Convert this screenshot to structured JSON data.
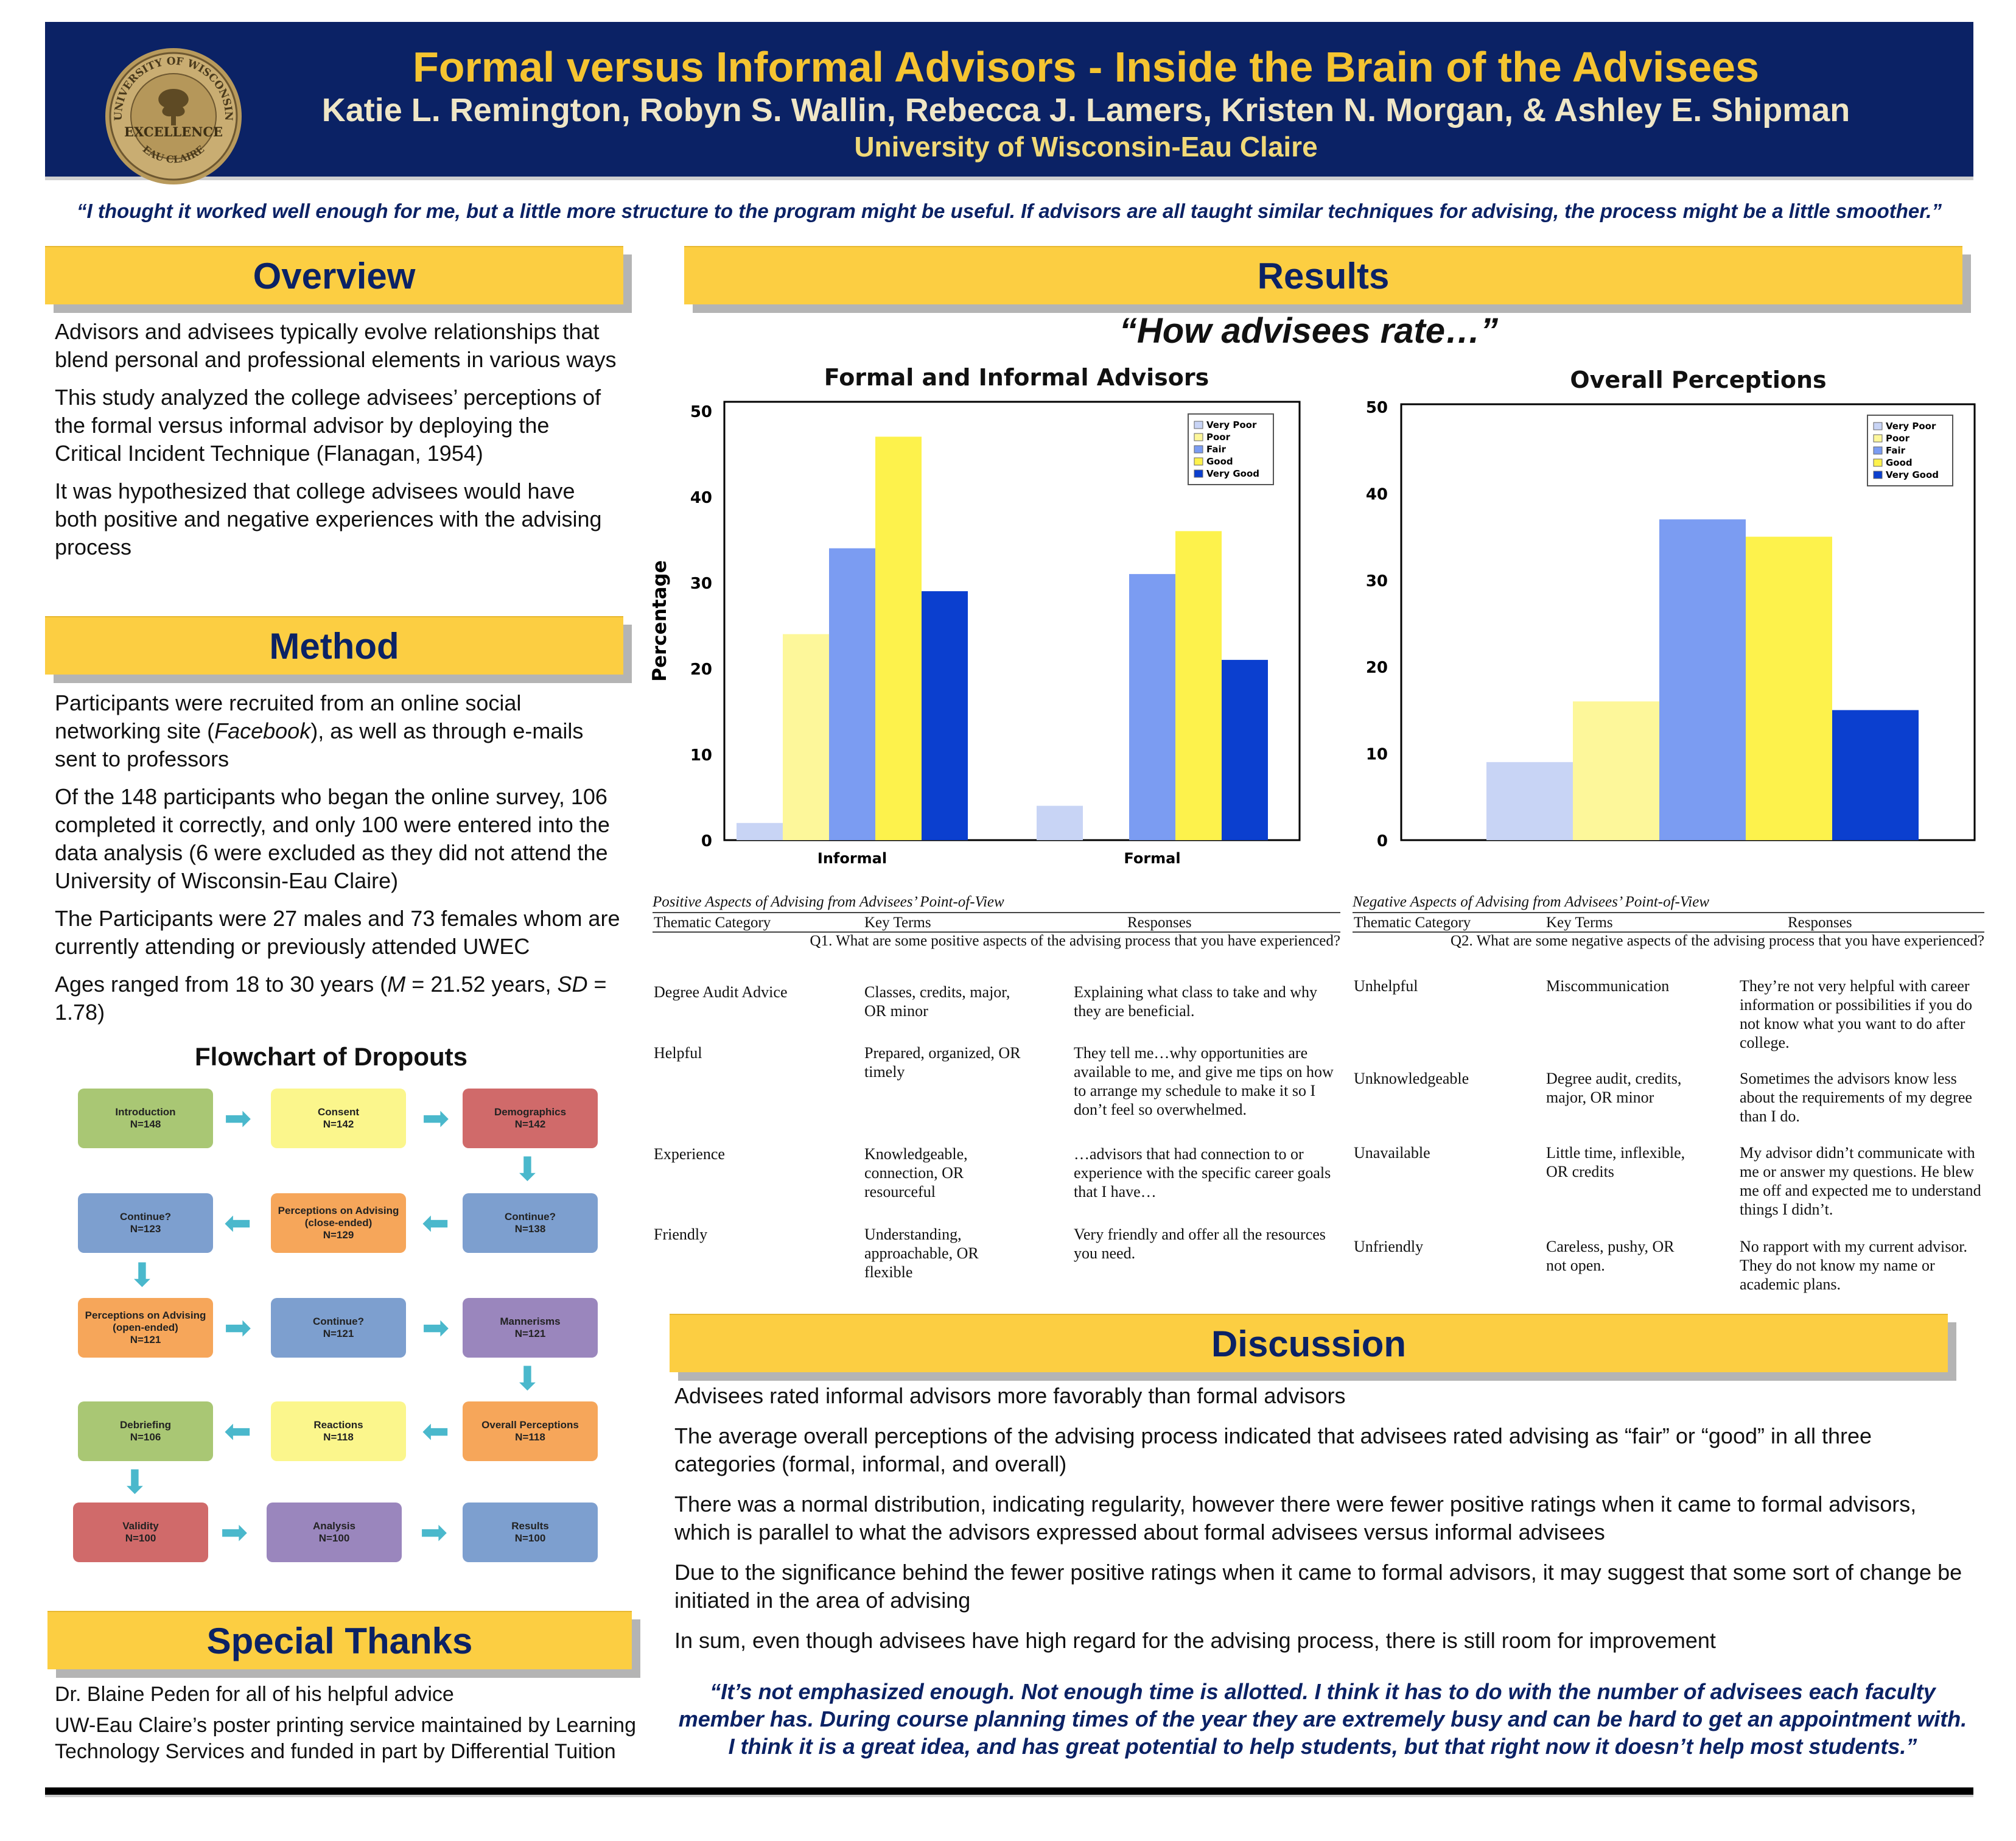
{
  "header": {
    "title": "Formal versus Informal Advisors - Inside the Brain of the Advisees",
    "authors": "Katie L. Remington, Robyn S. Wallin, Rebecca  J. Lamers, Kristen N. Morgan, & Ashley E. Shipman",
    "university": "University of Wisconsin-Eau Claire",
    "seal": {
      "top_text": "UNIVERSITY OF WISCONSIN",
      "center_text": "EXCELLENCE",
      "bottom_text": "EAU CLAIRE"
    }
  },
  "top_quote": "“I thought it worked well enough for me, but a little more structure to the program might be useful.  If advisors are all taught similar techniques for advising, the process might be a little smoother.”",
  "overview": {
    "heading": "Overview",
    "paragraphs": [
      "Advisors and advisees typically evolve relationships that blend personal and professional elements in various ways",
      "This study analyzed the college advisees’ perceptions of the formal versus informal advisor by deploying the Critical Incident Technique (Flanagan, 1954)",
      "It was hypothesized that college advisees would have both positive and negative experiences with the advising process"
    ]
  },
  "method": {
    "heading": "Method",
    "p1_before": "Participants were recruited from an online social networking site (",
    "p1_italic": "Facebook",
    "p1_after": "), as well as through e-mails sent to professors",
    "p2": "Of the 148 participants who began the online survey, 106 completed it correctly, and only 100 were entered into the data analysis (6 were excluded as they did not attend the University of Wisconsin-Eau Claire)",
    "p3": "The Participants were 27 males and 73 females whom are currently attending or previously attended UWEC",
    "p4_a": "Ages ranged from 18 to 30 years (",
    "p4_m": "M",
    "p4_b": " = 21.52 years, ",
    "p4_sd": "SD",
    "p4_c": " = 1.78)"
  },
  "flowchart": {
    "title": "Flowchart of Dropouts",
    "boxes": [
      {
        "label": "Introduction",
        "n": "N=148"
      },
      {
        "label": "Consent",
        "n": "N=142"
      },
      {
        "label": "Demographics",
        "n": "N=142"
      },
      {
        "label": "Continue?",
        "n": "N=138"
      },
      {
        "label": "Perceptions on Advising (close-ended)",
        "n": "N=129"
      },
      {
        "label": "Continue?",
        "n": "N=123"
      },
      {
        "label": "Perceptions on Advising (open-ended)",
        "n": "N=121"
      },
      {
        "label": "Continue?",
        "n": "N=121"
      },
      {
        "label": "Mannerisms",
        "n": "N=121"
      },
      {
        "label": "Overall Perceptions",
        "n": "N=118"
      },
      {
        "label": "Reactions",
        "n": "N=118"
      },
      {
        "label": "Debriefing",
        "n": "N=106"
      },
      {
        "label": "Validity",
        "n": "N=100"
      },
      {
        "label": "Analysis",
        "n": "N=100"
      },
      {
        "label": "Results",
        "n": "N=100"
      }
    ]
  },
  "thanks": {
    "heading": "Special Thanks",
    "paragraphs": [
      "Dr. Blaine Peden for all of his helpful advice",
      "UW-Eau Claire’s poster printing service maintained by Learning Technology Services and funded in part by Differential Tuition"
    ]
  },
  "results": {
    "heading": "Results",
    "rate_heading": "“How advisees rate…”"
  },
  "chart_data": [
    {
      "type": "bar",
      "title": "Formal and Informal Advisors",
      "ylabel": "Percentage",
      "xlabel": "",
      "ylim": [
        0,
        50
      ],
      "yticks": [
        0,
        10,
        20,
        30,
        40,
        50
      ],
      "categories": [
        "Informal",
        "Formal"
      ],
      "legend": "top-right",
      "series": [
        {
          "name": "Very Poor",
          "color": "#c8d4f5",
          "values": [
            2,
            4
          ]
        },
        {
          "name": "Poor",
          "color": "#fdf79a",
          "values": [
            24,
            0
          ]
        },
        {
          "name": "Fair",
          "color": "#7b9cf2",
          "values": [
            34,
            31
          ]
        },
        {
          "name": "Good",
          "color": "#fdf24c",
          "values": [
            47,
            36
          ]
        },
        {
          "name": "Very Good",
          "color": "#0b3fcf",
          "values": [
            29,
            21
          ]
        }
      ]
    },
    {
      "type": "bar",
      "title": "Overall Perceptions",
      "ylabel": "",
      "xlabel": "",
      "ylim": [
        0,
        50
      ],
      "yticks": [
        0,
        10,
        20,
        30,
        40,
        50
      ],
      "categories": [
        ""
      ],
      "legend": "top-right",
      "series": [
        {
          "name": "Very Poor",
          "color": "#c8d4f5",
          "values": [
            9
          ]
        },
        {
          "name": "Poor",
          "color": "#fdf79a",
          "values": [
            16
          ]
        },
        {
          "name": "Fair",
          "color": "#7b9cf2",
          "values": [
            37
          ]
        },
        {
          "name": "Good",
          "color": "#fdf24c",
          "values": [
            35
          ]
        },
        {
          "name": "Very Good",
          "color": "#0b3fcf",
          "values": [
            15
          ]
        }
      ]
    }
  ],
  "positive_table": {
    "title": "Positive Aspects of Advising from Advisees’ Point-of-View",
    "headers": [
      "Thematic Category",
      "Key Terms",
      "Responses"
    ],
    "question": "Q1. What are some positive aspects of the advising process that you have experienced?",
    "rows": [
      {
        "category": "Degree Audit Advice",
        "terms": "Classes, credits, major, OR minor",
        "response": "Explaining what class to take and why they are beneficial."
      },
      {
        "category": "Helpful",
        "terms": "Prepared, organized, OR timely",
        "response": "They tell me…why opportunities are available to me, and give me tips on how to arrange my schedule to make it so I don’t feel so overwhelmed."
      },
      {
        "category": "Experience",
        "terms": "Knowledgeable, connection, OR resourceful",
        "response": "…advisors that had connection to or experience with the specific career goals that I have…"
      },
      {
        "category": "Friendly",
        "terms": "Understanding, approachable, OR flexible",
        "response": "Very friendly and offer all the resources you need."
      }
    ]
  },
  "negative_table": {
    "title": "Negative Aspects of Advising from Advisees’ Point-of-View",
    "headers": [
      "Thematic Category",
      "Key Terms",
      "Responses"
    ],
    "question": "Q2. What are some negative aspects of the advising process that you have experienced?",
    "rows": [
      {
        "category": "Unhelpful",
        "terms": "Miscommunication",
        "response": "They’re not very helpful with career information or possibilities if you do not know what you want to do after college."
      },
      {
        "category": "Unknowledgeable",
        "terms": "Degree audit, credits, major, OR minor",
        "response": "Sometimes the advisors know less about the requirements of my degree than I do."
      },
      {
        "category": "Unavailable",
        "terms": "Little time, inflexible, OR credits",
        "response": "My advisor didn’t communicate with me or answer my questions. He blew me off and expected me to understand things I didn’t."
      },
      {
        "category": "Unfriendly",
        "terms": "Careless, pushy, OR not open.",
        "response": "No rapport with my current advisor. They do not know my name or academic plans."
      }
    ]
  },
  "discussion": {
    "heading": "Discussion",
    "paragraphs": [
      "Advisees rated informal advisors more favorably than formal advisors",
      "The average overall perceptions of the advising process indicated that advisees rated advising as “fair” or “good” in all three categories (formal, informal, and overall)",
      "There was a normal distribution, indicating regularity, however there were fewer positive ratings when it came to formal advisors, which is parallel to what the advisors expressed about formal advisees versus informal advisees",
      "Due to the significance behind the fewer positive ratings when it came to formal advisors, it may suggest that some sort of change be initiated in the area of advising",
      "In sum, even though advisees have high regard for the advising process, there is still room for improvement"
    ]
  },
  "bottom_quote": "“It’s not emphasized enough.  Not enough time is allotted.  I think it has to do with the number of advisees each faculty member has.  During course planning times of the year they are extremely busy and can be hard to get an appointment with.  I think it is a great idea, and has great potential to help students, but that right now it doesn’t help most students.”"
}
